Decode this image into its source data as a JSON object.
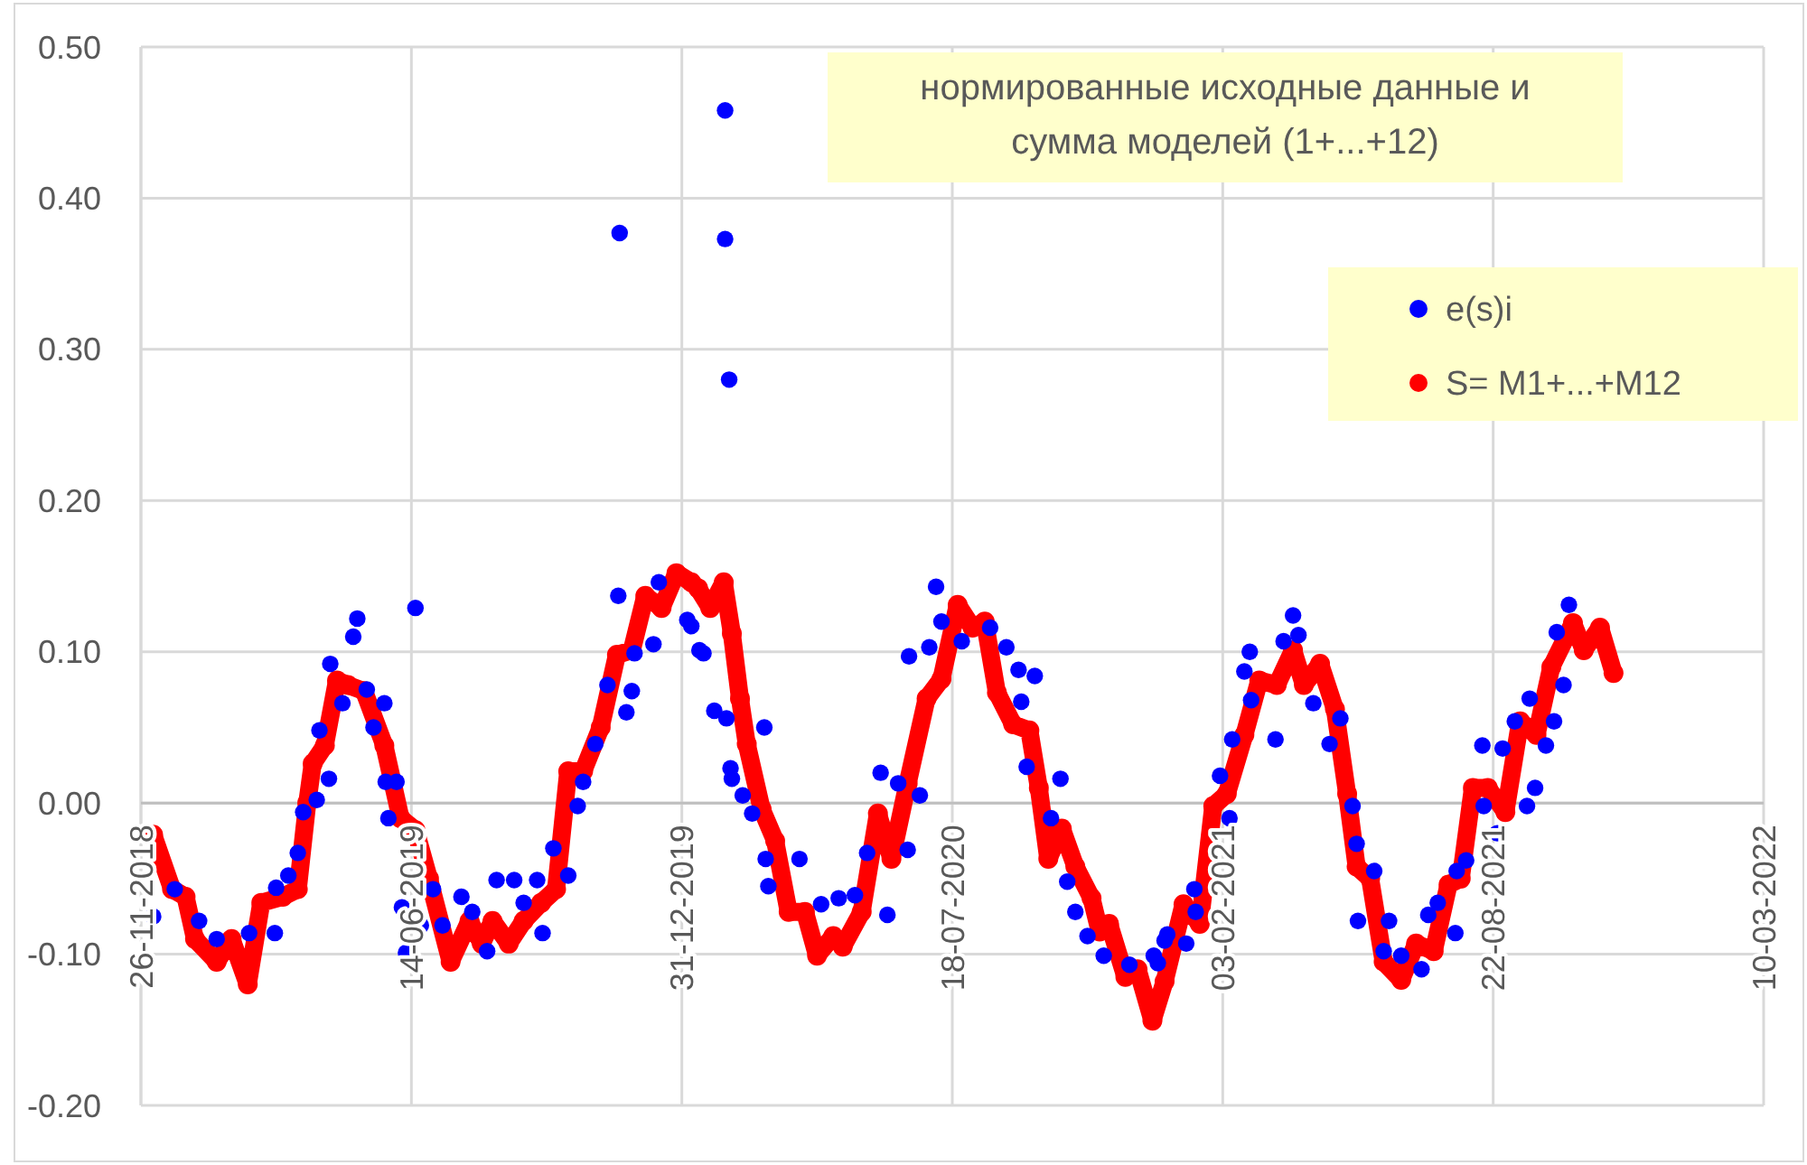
{
  "chart_data": {
    "type": "scatter",
    "title": "нормированные исходные данные и сумма моделей (1+...+12)",
    "xlim": [
      "2018-11-26",
      "2022-03-10"
    ],
    "xticks": [
      {
        "value": "2018-11-26",
        "label": "26-11-2018"
      },
      {
        "value": "2019-06-14",
        "label": "14-06-2019"
      },
      {
        "value": "2019-12-31",
        "label": "31-12-2019"
      },
      {
        "value": "2020-07-18",
        "label": "18-07-2020"
      },
      {
        "value": "2021-02-03",
        "label": "03-02-2021"
      },
      {
        "value": "2021-08-22",
        "label": "22-08-2021"
      },
      {
        "value": "2022-03-10",
        "label": "10-03-2022"
      }
    ],
    "ylim": [
      -0.2,
      0.5
    ],
    "yticks": [
      {
        "value": -0.2,
        "label": "-0.20"
      },
      {
        "value": -0.1,
        "label": "-0.10"
      },
      {
        "value": 0,
        "label": "0.00"
      },
      {
        "value": 0.1,
        "label": "0.10"
      },
      {
        "value": 0.2,
        "label": "0.20"
      },
      {
        "value": 0.3,
        "label": "0.30"
      },
      {
        "value": 0.4,
        "label": "0.40"
      },
      {
        "value": 0.5,
        "label": "0.50"
      }
    ],
    "grid": true,
    "legend": "top right",
    "marker": "circle",
    "series": [
      {
        "name": "e(s)i",
        "color": "#0000ff",
        "x": [
          "2018-12-05",
          "2018-12-21",
          "2019-01-08",
          "2019-01-21",
          "2019-02-14",
          "2019-03-05",
          "2019-03-06",
          "2019-03-15",
          "2019-03-22",
          "2019-03-26",
          "2019-04-05",
          "2019-04-07",
          "2019-04-14",
          "2019-04-15",
          "2019-04-24",
          "2019-05-02",
          "2019-05-05",
          "2019-05-12",
          "2019-05-17",
          "2019-05-25",
          "2019-05-26",
          "2019-05-28",
          "2019-06-03",
          "2019-06-07",
          "2019-06-10",
          "2019-06-17",
          "2019-06-21",
          "2019-06-30",
          "2019-07-07",
          "2019-07-21",
          "2019-07-29",
          "2019-08-09",
          "2019-08-16",
          "2019-08-29",
          "2019-09-05",
          "2019-09-15",
          "2019-09-19",
          "2019-09-27",
          "2019-10-08",
          "2019-10-15",
          "2019-10-19",
          "2019-10-28",
          "2019-11-06",
          "2019-11-14",
          "2019-11-15",
          "2019-11-20",
          "2019-11-24",
          "2019-11-26",
          "2019-12-10",
          "2019-12-14",
          "2020-01-04",
          "2020-01-07",
          "2020-01-13",
          "2020-01-16",
          "2020-01-24",
          "2020-02-01",
          "2020-02-01",
          "2020-02-02",
          "2020-02-04",
          "2020-02-05",
          "2020-02-06",
          "2020-02-14",
          "2020-02-21",
          "2020-03-01",
          "2020-03-02",
          "2020-03-04",
          "2020-03-27",
          "2020-04-12",
          "2020-04-25",
          "2020-05-07",
          "2020-05-16",
          "2020-05-26",
          "2020-05-31",
          "2020-06-08",
          "2020-06-15",
          "2020-06-16",
          "2020-06-24",
          "2020-07-01",
          "2020-07-06",
          "2020-07-10",
          "2020-07-25",
          "2020-08-15",
          "2020-08-27",
          "2020-09-05",
          "2020-09-07",
          "2020-09-11",
          "2020-09-17",
          "2020-09-29",
          "2020-10-06",
          "2020-10-11",
          "2020-10-17",
          "2020-10-26",
          "2020-11-07",
          "2020-11-26",
          "2020-12-14",
          "2020-12-17",
          "2020-12-22",
          "2020-12-24",
          "2021-01-07",
          "2021-01-13",
          "2021-01-14",
          "2021-02-01",
          "2021-02-08",
          "2021-02-10",
          "2021-02-19",
          "2021-02-23",
          "2021-02-24",
          "2021-03-14",
          "2021-03-20",
          "2021-03-27",
          "2021-03-31",
          "2021-04-11",
          "2021-04-23",
          "2021-05-01",
          "2021-05-10",
          "2021-05-13",
          "2021-05-14",
          "2021-05-26",
          "2021-06-02",
          "2021-06-06",
          "2021-06-15",
          "2021-06-30",
          "2021-07-05",
          "2021-07-12",
          "2021-07-25",
          "2021-07-26",
          "2021-08-02",
          "2021-08-14",
          "2021-08-15",
          "2021-08-25",
          "2021-08-29",
          "2021-09-07",
          "2021-09-16",
          "2021-09-18",
          "2021-09-22",
          "2021-09-30",
          "2021-10-06",
          "2021-10-08",
          "2021-10-13",
          "2021-10-17"
        ],
        "values": [
          -0.075,
          -0.057,
          -0.078,
          -0.09,
          -0.086,
          -0.086,
          -0.056,
          -0.048,
          -0.033,
          -0.006,
          0.002,
          0.048,
          0.016,
          0.092,
          0.066,
          0.11,
          0.122,
          0.075,
          0.05,
          0.066,
          0.014,
          -0.01,
          0.014,
          -0.069,
          -0.099,
          0.129,
          -0.081,
          -0.057,
          -0.081,
          -0.062,
          -0.072,
          -0.098,
          -0.051,
          -0.051,
          -0.066,
          -0.051,
          -0.086,
          -0.03,
          -0.048,
          -0.002,
          0.014,
          0.039,
          0.078,
          0.137,
          0.377,
          0.06,
          0.074,
          0.099,
          0.105,
          0.146,
          0.121,
          0.117,
          0.101,
          0.099,
          0.061,
          0.458,
          0.373,
          0.056,
          0.28,
          0.023,
          0.016,
          0.005,
          -0.007,
          0.05,
          -0.037,
          -0.055,
          -0.037,
          -0.067,
          -0.063,
          -0.061,
          -0.033,
          0.02,
          -0.074,
          0.013,
          -0.031,
          0.097,
          0.005,
          0.103,
          0.143,
          0.12,
          0.107,
          0.116,
          0.103,
          0.088,
          0.067,
          0.024,
          0.084,
          -0.01,
          0.016,
          -0.052,
          -0.072,
          -0.088,
          -0.101,
          -0.107,
          -0.101,
          -0.106,
          -0.091,
          -0.087,
          -0.093,
          -0.057,
          -0.072,
          0.018,
          -0.01,
          0.042,
          0.087,
          0.1,
          0.068,
          0.042,
          0.107,
          0.124,
          0.111,
          0.066,
          0.039,
          0.056,
          -0.002,
          -0.027,
          -0.078,
          -0.045,
          -0.098,
          -0.078,
          -0.101,
          -0.11,
          -0.074,
          -0.066,
          -0.086,
          -0.045,
          -0.038,
          0.038,
          -0.002,
          -0.02,
          0.036,
          0.054,
          -0.002,
          0.069,
          0.01,
          0.038,
          0.054,
          0.113,
          0.078,
          0.131
        ]
      },
      {
        "name": "S= M1+...+M12",
        "type": "line",
        "color": "#ff0000",
        "x": [
          "2018-12-05",
          "2018-12-19",
          "2018-12-29",
          "2019-01-05",
          "2019-01-21",
          "2019-02-01",
          "2019-02-13",
          "2019-02-23",
          "2019-03-11",
          "2019-03-22",
          "2019-03-29",
          "2019-04-02",
          "2019-04-11",
          "2019-04-20",
          "2019-04-28",
          "2019-05-10",
          "2019-05-25",
          "2019-06-06",
          "2019-06-17",
          "2019-06-27",
          "2019-07-13",
          "2019-07-27",
          "2019-08-05",
          "2019-08-13",
          "2019-08-25",
          "2019-09-05",
          "2019-09-18",
          "2019-09-29",
          "2019-10-08",
          "2019-10-19",
          "2019-11-01",
          "2019-11-13",
          "2019-11-24",
          "2019-12-04",
          "2019-12-16",
          "2019-12-27",
          "2020-01-07",
          "2020-01-12",
          "2020-01-21",
          "2020-01-31",
          "2020-02-06",
          "2020-02-12",
          "2020-02-17",
          "2020-02-28",
          "2020-03-09",
          "2020-03-19",
          "2020-03-31",
          "2020-04-09",
          "2020-04-21",
          "2020-04-28",
          "2020-05-12",
          "2020-05-24",
          "2020-06-03",
          "2020-06-15",
          "2020-06-29",
          "2020-07-10",
          "2020-07-22",
          "2020-08-02",
          "2020-08-11",
          "2020-08-20",
          "2020-09-01",
          "2020-09-13",
          "2020-09-20",
          "2020-09-27",
          "2020-10-07",
          "2020-10-17",
          "2020-10-29",
          "2020-11-04",
          "2020-11-11",
          "2020-11-23",
          "2020-12-02",
          "2020-12-13",
          "2020-12-22",
          "2021-01-05",
          "2021-01-17",
          "2021-01-27",
          "2021-02-06",
          "2021-02-19",
          "2021-03-02",
          "2021-03-15",
          "2021-03-27",
          "2021-04-04",
          "2021-04-16",
          "2021-04-27",
          "2021-05-06",
          "2021-05-13",
          "2021-05-23",
          "2021-06-02",
          "2021-06-15",
          "2021-06-26",
          "2021-07-09",
          "2021-07-20",
          "2021-07-29",
          "2021-08-07",
          "2021-08-18",
          "2021-08-31",
          "2021-09-11",
          "2021-09-23",
          "2021-10-04",
          "2021-10-20",
          "2021-10-28",
          "2021-11-09",
          "2021-11-19"
        ],
        "values": [
          -0.021,
          -0.057,
          -0.062,
          -0.09,
          -0.105,
          -0.09,
          -0.12,
          -0.066,
          -0.062,
          -0.057,
          0.0,
          0.026,
          0.038,
          0.081,
          0.078,
          0.074,
          0.038,
          -0.01,
          -0.018,
          -0.05,
          -0.105,
          -0.078,
          -0.093,
          -0.078,
          -0.093,
          -0.078,
          -0.066,
          -0.057,
          0.021,
          0.021,
          0.05,
          0.098,
          0.101,
          0.137,
          0.129,
          0.152,
          0.146,
          0.142,
          0.129,
          0.146,
          0.112,
          0.069,
          0.039,
          -0.004,
          -0.025,
          -0.072,
          -0.072,
          -0.101,
          -0.088,
          -0.095,
          -0.072,
          -0.007,
          -0.037,
          0.013,
          0.069,
          0.082,
          0.131,
          0.116,
          0.12,
          0.073,
          0.052,
          0.048,
          0.01,
          -0.037,
          -0.017,
          -0.042,
          -0.063,
          -0.085,
          -0.08,
          -0.115,
          -0.11,
          -0.144,
          -0.118,
          -0.067,
          -0.08,
          -0.002,
          0.006,
          0.045,
          0.081,
          0.078,
          0.101,
          0.078,
          0.092,
          0.062,
          0.006,
          -0.042,
          -0.05,
          -0.105,
          -0.117,
          -0.093,
          -0.098,
          -0.054,
          -0.05,
          0.01,
          0.01,
          -0.006,
          0.054,
          0.045,
          0.09,
          0.119,
          0.101,
          0.116,
          0.086
        ]
      }
    ]
  }
}
